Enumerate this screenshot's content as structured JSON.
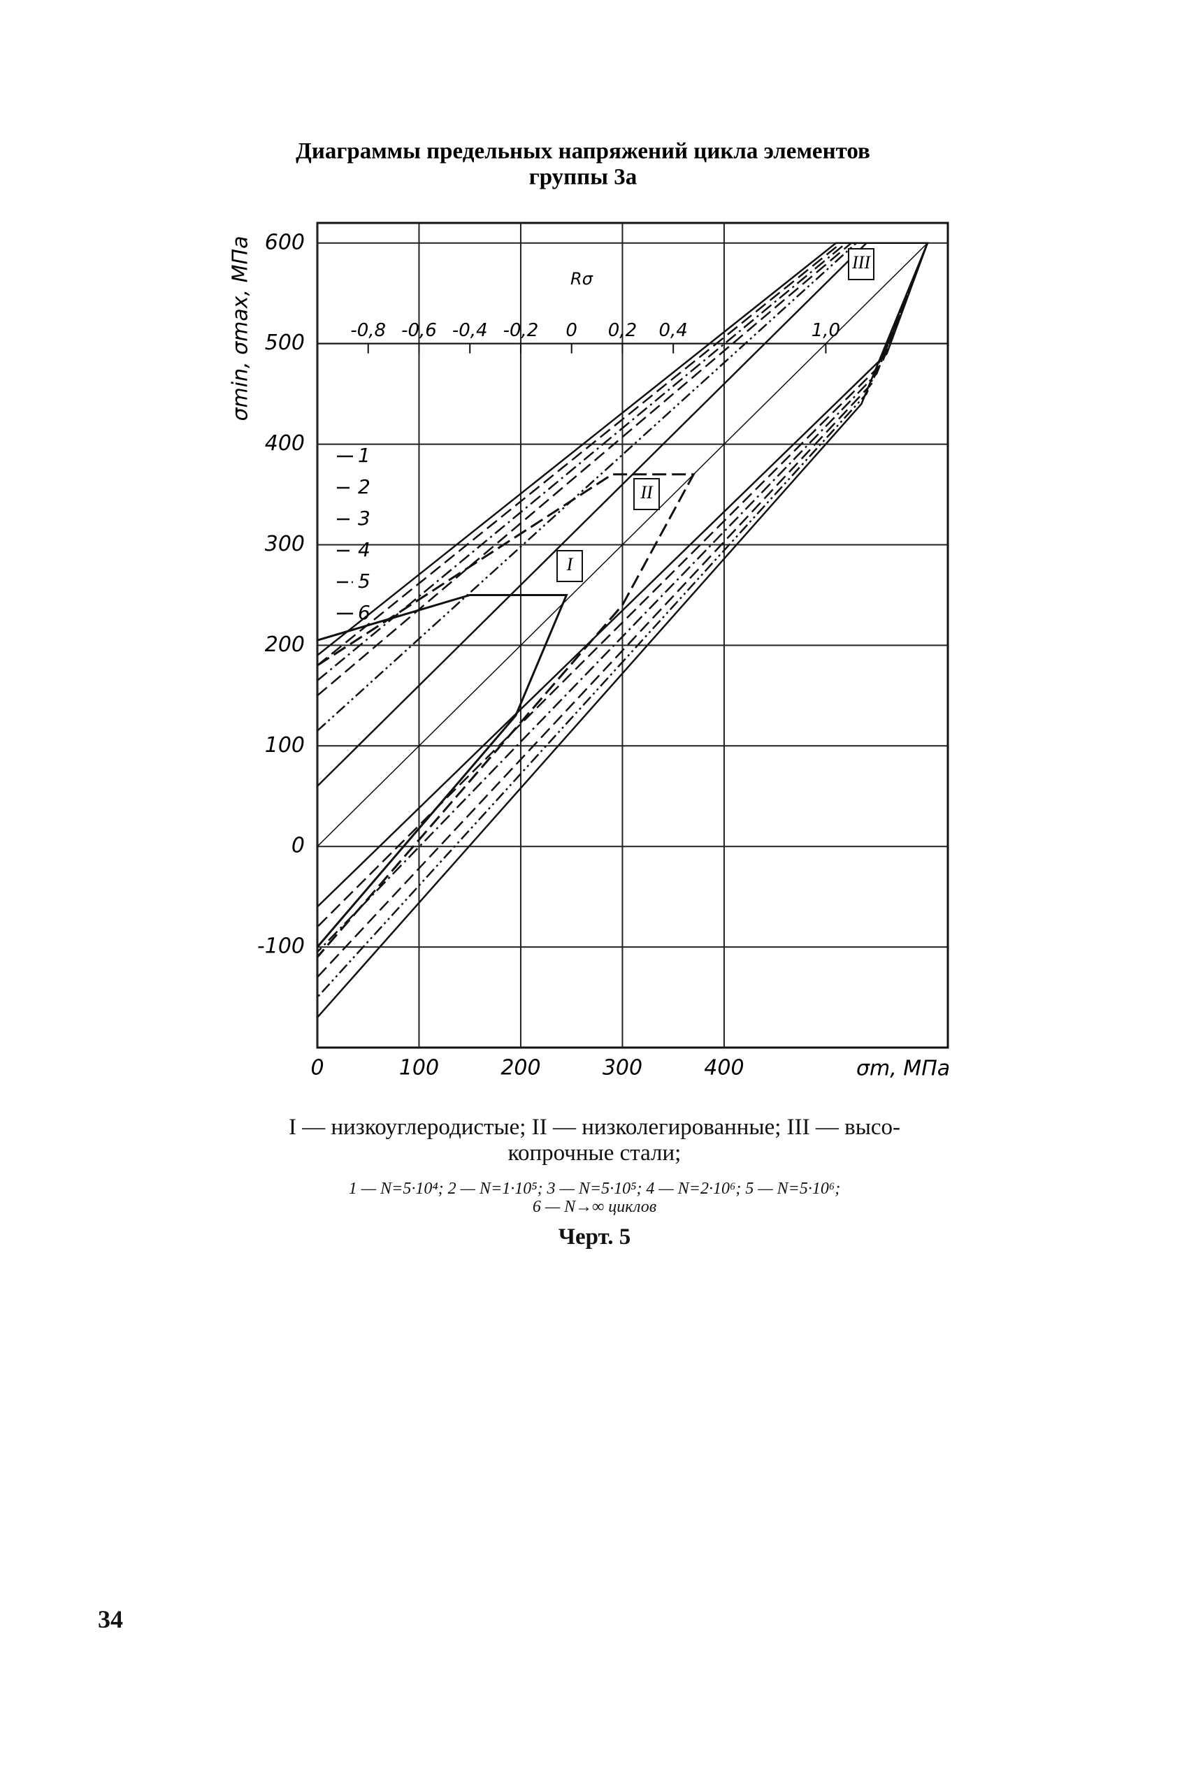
{
  "chart_data": {
    "type": "line",
    "title": "Диаграммы предельных напряжений цикла элементов",
    "subtitle": "группы 3а",
    "x_label": "σm, MПа",
    "y_label": "σmin, σmax, MПа",
    "xlim": [
      0,
      620
    ],
    "ylim": [
      -200,
      620
    ],
    "xticks": [
      0,
      100,
      200,
      300,
      400
    ],
    "yticks": [
      -100,
      0,
      100,
      200,
      300,
      400,
      500,
      600
    ],
    "grid": true,
    "r_axis": {
      "label": "Rσ",
      "at": 500,
      "ticks": [
        {
          "value": -0.8,
          "label": "-0,8"
        },
        {
          "value": -0.6,
          "label": "-0,6"
        },
        {
          "value": -0.4,
          "label": "-0,4"
        },
        {
          "value": -0.2,
          "label": "-0,2"
        },
        0,
        {
          "value": 0.2,
          "label": "0,2"
        },
        {
          "value": 0.4,
          "label": "0,4"
        },
        {
          "value": 1.0,
          "label": "1,0"
        }
      ]
    },
    "series": [
      {
        "name": "1",
        "style": "solid",
        "color": "#111",
        "x": [
          0,
          510,
          600,
          560,
          0
        ],
        "y": [
          190,
          600,
          600,
          490,
          -60
        ]
      },
      {
        "name": "2",
        "style": "dashed",
        "color": "#111",
        "x": [
          0,
          515,
          600,
          555,
          0
        ],
        "y": [
          180,
          600,
          600,
          480,
          -80
        ]
      },
      {
        "name": "3",
        "style": "dashdot",
        "color": "#111",
        "x": [
          0,
          520,
          600,
          550,
          0
        ],
        "y": [
          165,
          600,
          600,
          470,
          -105
        ]
      },
      {
        "name": "4",
        "style": "dashed",
        "color": "#111",
        "x": [
          0,
          525,
          600,
          545,
          0
        ],
        "y": [
          150,
          600,
          600,
          460,
          -130
        ]
      },
      {
        "name": "5",
        "style": "dashdotdot",
        "color": "#111",
        "x": [
          0,
          530,
          600,
          540,
          0
        ],
        "y": [
          115,
          600,
          600,
          450,
          -150
        ]
      },
      {
        "name": "6",
        "style": "solid",
        "color": "#111",
        "x": [
          0,
          540,
          600,
          535,
          0
        ],
        "y": [
          60,
          600,
          600,
          440,
          -170
        ]
      }
    ],
    "groups": [
      {
        "label": "I",
        "x": [
          0,
          150,
          245,
          195,
          0
        ],
        "y": [
          205,
          250,
          250,
          130,
          -100
        ]
      },
      {
        "label": "II",
        "x": [
          0,
          290,
          370,
          300,
          0
        ],
        "y": [
          180,
          370,
          370,
          240,
          -110
        ]
      },
      {
        "label": "III",
        "x": [
          0,
          600
        ],
        "y": [
          0,
          600
        ]
      }
    ]
  },
  "caption": {
    "lines": [
      "I — низкоуглеродистые; II — низколегированные; III — высо-",
      "копрочные стали;"
    ]
  },
  "notes": {
    "lines": [
      "1 — N=5·10⁴; 2 — N=1·10⁵; 3 — N=5·10⁵; 4 — N=2·10⁶; 5 — N=5·10⁶;",
      "6 — N→∞ циклов"
    ]
  },
  "figure_label": "Черт. 5",
  "page_number": "34"
}
